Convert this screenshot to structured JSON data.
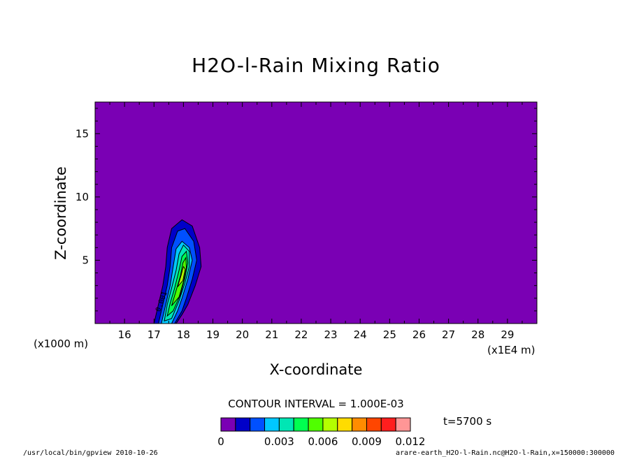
{
  "chart_data": {
    "type": "heatmap",
    "title": "H2O-l-Rain Mixing Ratio",
    "xlabel": "X-coordinate",
    "ylabel": "Z-coordinate",
    "x_unit_left": "(x1000 m)",
    "x_unit_right": "(x1E4 m)",
    "x_ticks": [
      "16",
      "17",
      "18",
      "19",
      "20",
      "21",
      "22",
      "23",
      "24",
      "25",
      "26",
      "27",
      "28",
      "29"
    ],
    "y_ticks": [
      "5",
      "10",
      "15"
    ],
    "xlim": [
      15,
      30
    ],
    "ylim": [
      0,
      17.5
    ],
    "contour_interval": "CONTOUR INTERVAL = 1.000E-03",
    "contour_label": "0.001",
    "time_label": "t=5700 s",
    "colorbar": {
      "labels": [
        "0",
        "0.003",
        "0.006",
        "0.009",
        "0.012"
      ],
      "levels": [
        0,
        0.001,
        0.002,
        0.003,
        0.004,
        0.005,
        0.006,
        0.007,
        0.008,
        0.009,
        0.01,
        0.011,
        0.012
      ],
      "colors": [
        "#7a00b4",
        "#0000c8",
        "#0050ff",
        "#00c8ff",
        "#00e6b4",
        "#00ff50",
        "#50ff00",
        "#b4ff00",
        "#ffdc00",
        "#ff8c00",
        "#ff4600",
        "#ff1e1e",
        "#ff9696"
      ]
    },
    "background_color": "#7a00b4",
    "plume": [
      {
        "level": 0.001,
        "color": "#0000c8",
        "points": [
          [
            17.0,
            0
          ],
          [
            17.15,
            1.5
          ],
          [
            17.3,
            3
          ],
          [
            17.4,
            4.5
          ],
          [
            17.45,
            6
          ],
          [
            17.6,
            7.5
          ],
          [
            17.95,
            8.2
          ],
          [
            18.3,
            7.7
          ],
          [
            18.55,
            6
          ],
          [
            18.6,
            4.5
          ],
          [
            18.4,
            3
          ],
          [
            18.15,
            1.5
          ],
          [
            17.95,
            0.7
          ],
          [
            17.75,
            0
          ]
        ]
      },
      {
        "level": 0.002,
        "color": "#0050ff",
        "points": [
          [
            17.15,
            0
          ],
          [
            17.3,
            1.5
          ],
          [
            17.45,
            3
          ],
          [
            17.55,
            4.5
          ],
          [
            17.6,
            6
          ],
          [
            17.8,
            7.3
          ],
          [
            18.05,
            7.5
          ],
          [
            18.35,
            6.5
          ],
          [
            18.45,
            5
          ],
          [
            18.3,
            3.5
          ],
          [
            18.1,
            2
          ],
          [
            17.95,
            1
          ],
          [
            17.7,
            0
          ]
        ]
      },
      {
        "level": 0.003,
        "color": "#00c8ff",
        "points": [
          [
            17.25,
            0
          ],
          [
            17.4,
            1.5
          ],
          [
            17.55,
            3
          ],
          [
            17.65,
            4.5
          ],
          [
            17.75,
            5.9
          ],
          [
            17.95,
            6.5
          ],
          [
            18.2,
            6
          ],
          [
            18.3,
            5
          ],
          [
            18.15,
            3.5
          ],
          [
            17.95,
            2
          ],
          [
            17.8,
            1
          ],
          [
            17.6,
            0
          ]
        ]
      },
      {
        "level": 0.004,
        "color": "#00e6b4",
        "points": [
          [
            17.35,
            0.2
          ],
          [
            17.45,
            1.5
          ],
          [
            17.6,
            2.8
          ],
          [
            17.75,
            4.2
          ],
          [
            17.85,
            5.5
          ],
          [
            18.0,
            6.2
          ],
          [
            18.2,
            5.7
          ],
          [
            18.2,
            4.5
          ],
          [
            18.05,
            3.2
          ],
          [
            17.85,
            1.8
          ],
          [
            17.6,
            0.4
          ]
        ]
      },
      {
        "level": 0.005,
        "color": "#00ff50",
        "points": [
          [
            17.45,
            0.6
          ],
          [
            17.55,
            1.6
          ],
          [
            17.7,
            2.8
          ],
          [
            17.85,
            4.2
          ],
          [
            17.95,
            5.3
          ],
          [
            18.1,
            5.7
          ],
          [
            18.15,
            4.8
          ],
          [
            18.05,
            3.6
          ],
          [
            17.9,
            2.3
          ],
          [
            17.65,
            1.0
          ]
        ]
      },
      {
        "level": 0.006,
        "color": "#50ff00",
        "points": [
          [
            17.6,
            1.4
          ],
          [
            17.75,
            2.6
          ],
          [
            17.9,
            3.8
          ],
          [
            17.98,
            4.8
          ],
          [
            18.08,
            5.2
          ],
          [
            18.1,
            4.4
          ],
          [
            18.0,
            3.3
          ],
          [
            17.85,
            2.1
          ]
        ]
      },
      {
        "level": 0.007,
        "color": "#b4ff00",
        "points": [
          [
            17.8,
            2.9
          ],
          [
            17.92,
            3.8
          ],
          [
            18.0,
            4.5
          ],
          [
            18.06,
            4.3
          ],
          [
            17.98,
            3.4
          ]
        ]
      }
    ]
  },
  "footer": {
    "left": "/usr/local/bin/gpview  2010-10-26",
    "right": "arare-earth_H2O-l-Rain.nc@H2O-l-Rain,x=150000:300000"
  }
}
